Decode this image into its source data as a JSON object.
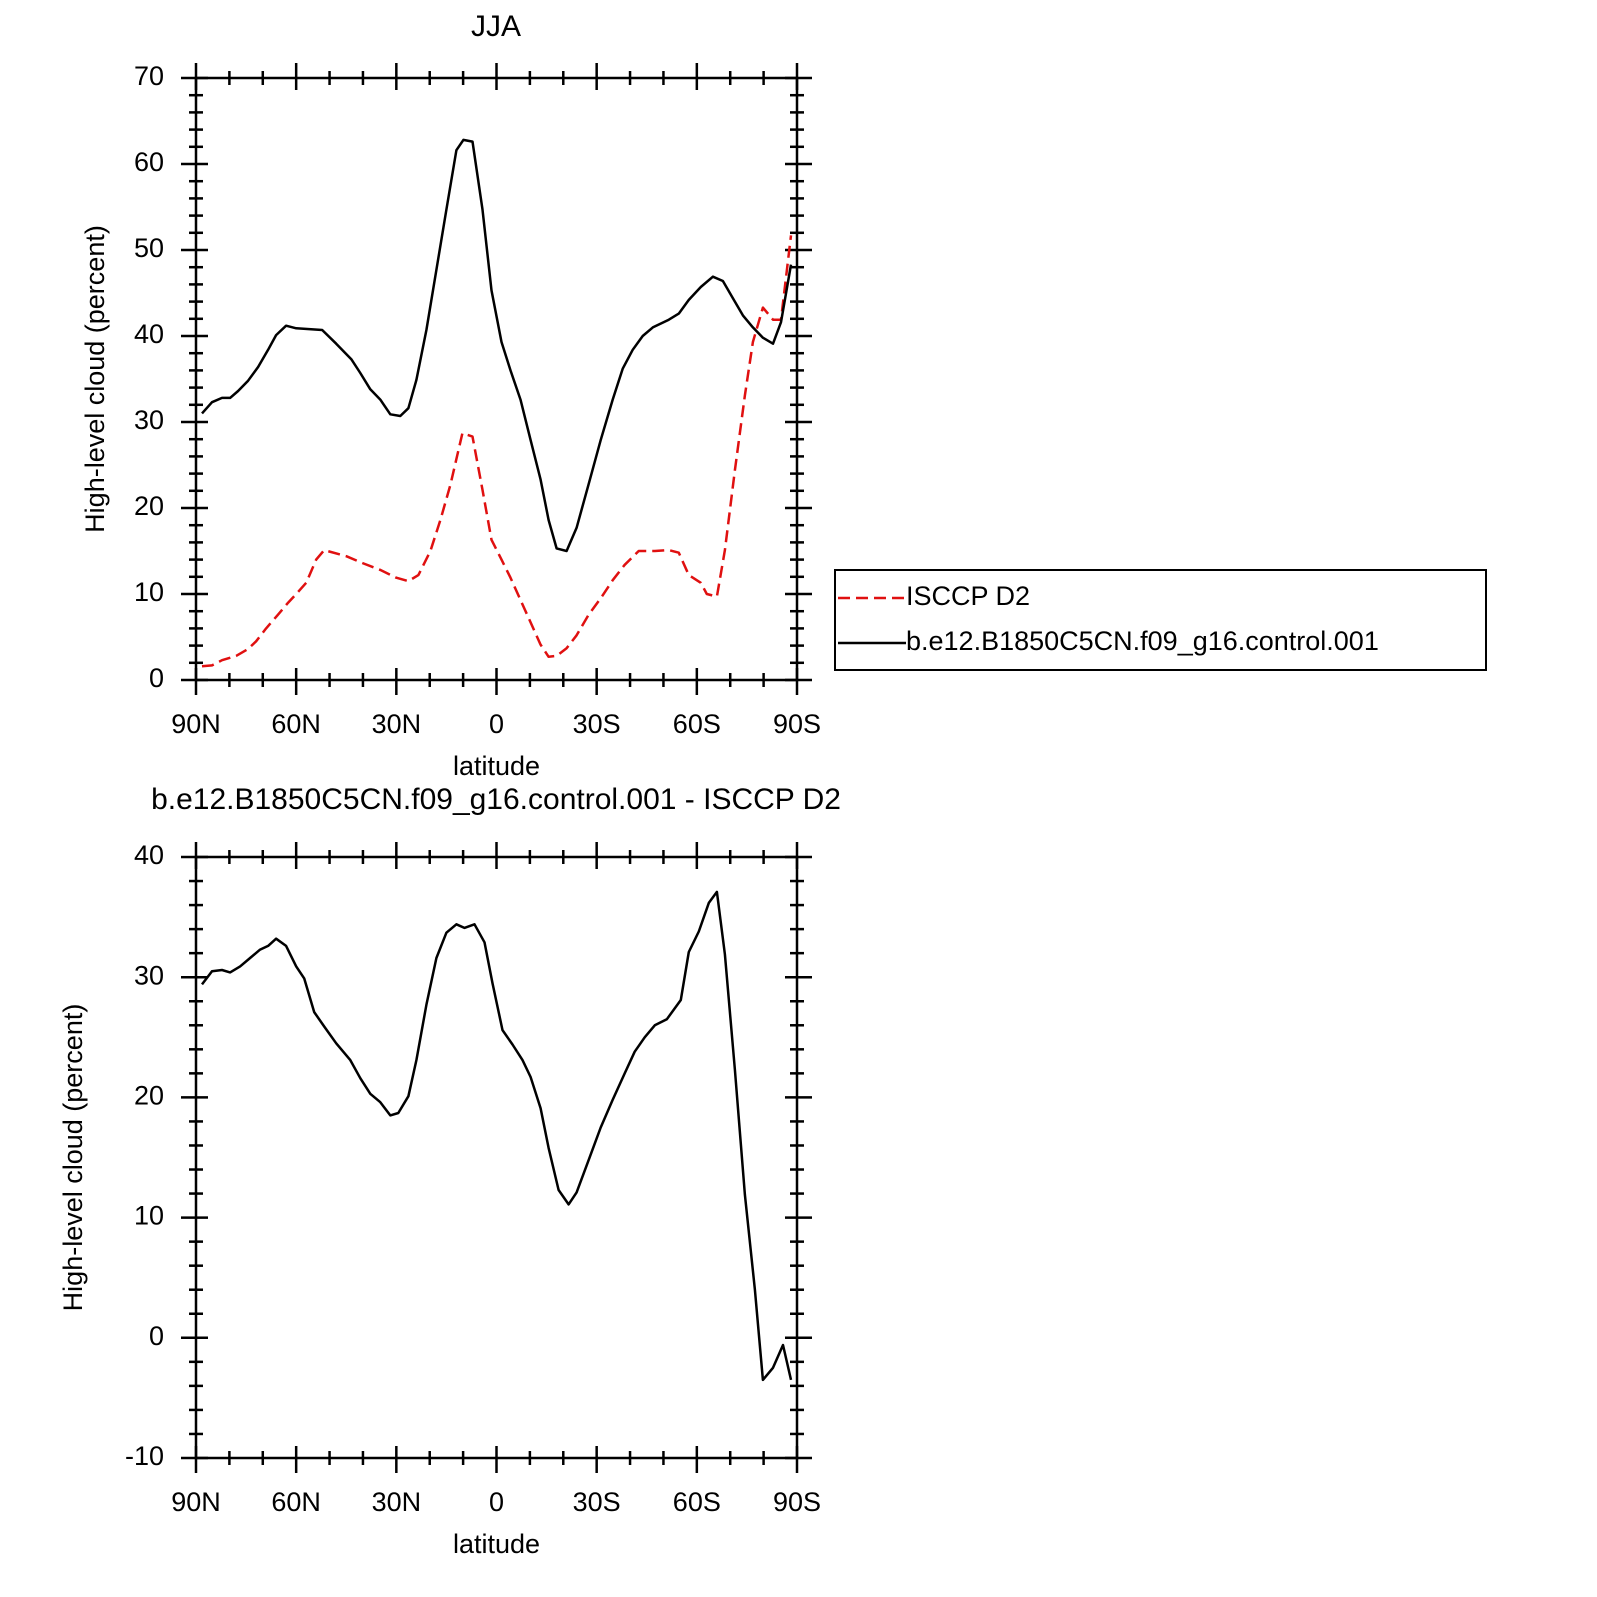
{
  "chart_data": [
    {
      "type": "line",
      "title": "JJA",
      "xlabel": "latitude",
      "ylabel": "High-level cloud (percent)",
      "xlim": [
        90,
        -90
      ],
      "ylim": [
        0,
        70
      ],
      "xticks": [
        {
          "value": 90,
          "label": "90N"
        },
        {
          "value": 60,
          "label": "60N"
        },
        {
          "value": 30,
          "label": "30N"
        },
        0,
        {
          "value": -30,
          "label": "30S"
        },
        {
          "value": -60,
          "label": "60S"
        },
        {
          "value": -90,
          "label": "90S"
        }
      ],
      "yticks": [
        0,
        10,
        20,
        30,
        40,
        50,
        60,
        70
      ],
      "xminorticks": [
        80,
        70,
        50,
        40,
        20,
        10,
        -10,
        -20,
        -40,
        -50,
        -70,
        -80
      ],
      "yminorticks": [
        2,
        4,
        6,
        8,
        12,
        14,
        16,
        18,
        22,
        24,
        26,
        28,
        32,
        34,
        36,
        38,
        42,
        44,
        46,
        48,
        52,
        54,
        56,
        58,
        62,
        64,
        66,
        68
      ],
      "legend": "right",
      "series": [
        {
          "name": "ISCCP D2",
          "color": "#e01010",
          "dashed": true,
          "x": [
            88.2,
            85.2,
            82.2,
            78,
            74.4,
            72,
            69,
            65.4,
            62.4,
            60,
            57,
            54,
            51.6,
            45,
            40.2,
            34.8,
            30,
            26.4,
            23.4,
            19.8,
            16.8,
            13.8,
            10.2,
            7.2,
            4.2,
            1.5,
            -1.5,
            -4.2,
            -7.2,
            -10.2,
            -13.2,
            -15.6,
            -18,
            -21,
            -24,
            -27.6,
            -31.2,
            -34.8,
            -38.4,
            -42.6,
            -47.4,
            -51.6,
            -54.6,
            -57.6,
            -61.2,
            -63,
            -66,
            -68.4,
            -71.4,
            -74.4,
            -76.8,
            -79.8,
            -82.8,
            -85.2,
            -88.2
          ],
          "values": [
            1.6,
            1.7,
            2.3,
            2.8,
            3.6,
            4.5,
            6.0,
            7.6,
            9.0,
            10.0,
            11.3,
            14.0,
            15.1,
            14.4,
            13.6,
            12.8,
            11.9,
            11.5,
            12.2,
            15.0,
            18.6,
            22.7,
            28.7,
            28.3,
            22.1,
            16.3,
            14.0,
            11.9,
            9.3,
            6.7,
            4.1,
            2.7,
            2.8,
            3.7,
            5.2,
            7.6,
            9.5,
            11.6,
            13.4,
            15.0,
            15.0,
            15.1,
            14.8,
            12.2,
            11.3,
            10.0,
            9.7,
            15.1,
            24.4,
            33.1,
            39.3,
            43.3,
            41.9,
            41.9,
            51.7
          ]
        },
        {
          "name": "b.e12.B1850C5CN.f09_g16.control.001",
          "color": "#000000",
          "dashed": false,
          "x": [
            88.2,
            85.2,
            82.2,
            79.8,
            77.4,
            74.4,
            71.4,
            68.4,
            66,
            63,
            60,
            52.2,
            48,
            43.5,
            40.8,
            37.8,
            34.8,
            31.8,
            28.8,
            26.4,
            24,
            21,
            18,
            15,
            12,
            9.9,
            7.2,
            4.2,
            1.5,
            -1.5,
            -4.2,
            -7.2,
            -10.2,
            -13.2,
            -15.6,
            -18,
            -21,
            -24,
            -27.6,
            -31.2,
            -34.8,
            -37.8,
            -40.8,
            -43.8,
            -46.8,
            -51.6,
            -54.6,
            -57.6,
            -61.2,
            -64.8,
            -67.8,
            -70.8,
            -73.8,
            -76.8,
            -79.8,
            -82.8,
            -85.2,
            -88.2
          ],
          "values": [
            31.0,
            32.3,
            32.8,
            32.8,
            33.6,
            34.8,
            36.4,
            38.4,
            40.1,
            41.2,
            40.9,
            40.7,
            39.1,
            37.3,
            35.7,
            33.8,
            32.6,
            30.9,
            30.7,
            31.6,
            34.9,
            40.7,
            47.7,
            54.7,
            61.6,
            62.8,
            62.6,
            54.7,
            45.3,
            39.3,
            36.0,
            32.6,
            27.9,
            23.3,
            18.6,
            15.3,
            15.0,
            17.7,
            22.8,
            27.9,
            32.6,
            36.2,
            38.4,
            40.0,
            41.0,
            41.9,
            42.6,
            44.2,
            45.7,
            46.9,
            46.4,
            44.4,
            42.4,
            41.0,
            39.8,
            39.1,
            41.6,
            48.3
          ]
        }
      ]
    },
    {
      "type": "line",
      "title": "b.e12.B1850C5CN.f09_g16.control.001 - ISCCP D2",
      "xlabel": "latitude",
      "ylabel": "High-level cloud (percent)",
      "xlim": [
        90,
        -90
      ],
      "ylim": [
        -10,
        40
      ],
      "xticks": [
        {
          "value": 90,
          "label": "90N"
        },
        {
          "value": 60,
          "label": "60N"
        },
        {
          "value": 30,
          "label": "30N"
        },
        0,
        {
          "value": -30,
          "label": "30S"
        },
        {
          "value": -60,
          "label": "60S"
        },
        {
          "value": -90,
          "label": "90S"
        }
      ],
      "yticks": [
        -10,
        0,
        10,
        20,
        30,
        40
      ],
      "xminorticks": [
        80,
        70,
        50,
        40,
        20,
        10,
        -10,
        -20,
        -40,
        -50,
        -70,
        -80
      ],
      "yminorticks": [
        -8,
        -6,
        -4,
        -2,
        2,
        4,
        6,
        8,
        12,
        14,
        16,
        18,
        22,
        24,
        26,
        28,
        32,
        34,
        36,
        38
      ],
      "color": "#000000",
      "x": [
        88.2,
        85.2,
        82.2,
        79.8,
        76.8,
        73.8,
        70.8,
        68.4,
        66,
        63,
        60,
        57.6,
        54.6,
        51.6,
        48,
        43.8,
        40.8,
        37.8,
        34.8,
        31.8,
        29.4,
        26.4,
        24,
        21,
        18,
        15,
        12,
        9.6,
        6.6,
        3.6,
        1.2,
        -1.8,
        -4.8,
        -7.8,
        -10.2,
        -13.2,
        -15.6,
        -18.6,
        -21.6,
        -24,
        -27.6,
        -31.2,
        -34.8,
        -38.4,
        -41.4,
        -44.4,
        -47.4,
        -51,
        -55.2,
        -57.6,
        -60.6,
        -63.6,
        -66,
        -68.4,
        -71.4,
        -74.4,
        -77.4,
        -79.8,
        -82.8,
        -85.8,
        -88.2
      ],
      "values": [
        29.4,
        30.5,
        30.6,
        30.4,
        30.9,
        31.6,
        32.3,
        32.6,
        33.2,
        32.6,
        30.9,
        29.9,
        27.1,
        25.9,
        24.5,
        23.1,
        21.6,
        20.3,
        19.6,
        18.5,
        18.7,
        20.1,
        23.1,
        27.7,
        31.6,
        33.7,
        34.4,
        34.1,
        34.4,
        32.9,
        29.5,
        25.6,
        24.4,
        23.1,
        21.7,
        19.1,
        15.8,
        12.3,
        11.1,
        12.1,
        14.8,
        17.5,
        19.8,
        22.0,
        23.8,
        25.0,
        26.0,
        26.5,
        28.1,
        32.1,
        33.8,
        36.2,
        37.1,
        31.9,
        22.3,
        11.9,
        4.0,
        -3.5,
        -2.5,
        -0.6,
        -3.5
      ]
    }
  ]
}
